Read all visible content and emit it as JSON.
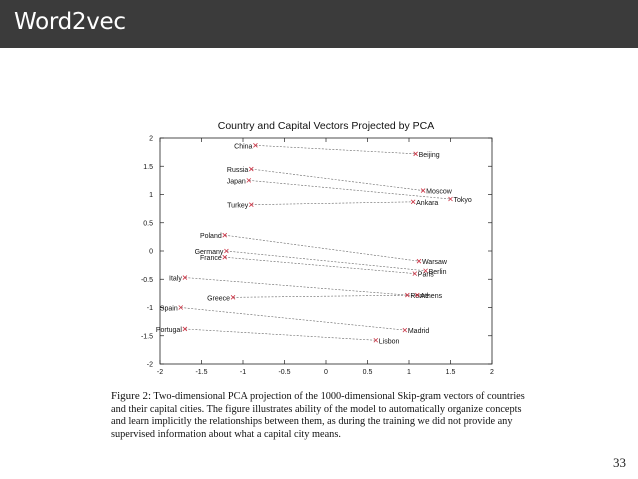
{
  "slide": {
    "title": "Word2vec",
    "page_number": "33"
  },
  "caption": {
    "label": "Figure 2:",
    "text": "Two-dimensional PCA projection of the 1000-dimensional Skip-gram vectors of countries and their capital cities. The figure illustrates ability of the model to automatically organize concepts and learn implicitly the relationships between them, as during the training we did not provide any supervised information about what a capital city means."
  },
  "colors": {
    "header_bg": "#3b3b3b",
    "marker": "#cc3344",
    "line": "#666666"
  },
  "chart_data": {
    "type": "scatter",
    "title": "Country and Capital Vectors Projected by PCA",
    "xlim": [
      -2,
      2
    ],
    "ylim": [
      -2,
      2
    ],
    "xticks": [
      "-2",
      "-1.5",
      "-1",
      "-0.5",
      "0",
      "0.5",
      "1",
      "1.5",
      "2"
    ],
    "yticks": [
      "2",
      "1.5",
      "1",
      "0.5",
      "0",
      "-0.5",
      "-1",
      "-1.5",
      "-2"
    ],
    "grid": false,
    "points": [
      {
        "label": "China",
        "x": -0.85,
        "y": 1.87
      },
      {
        "label": "Beijing",
        "x": 1.08,
        "y": 1.72
      },
      {
        "label": "Russia",
        "x": -0.9,
        "y": 1.45
      },
      {
        "label": "Moscow",
        "x": 1.17,
        "y": 1.07
      },
      {
        "label": "Japan",
        "x": -0.93,
        "y": 1.25
      },
      {
        "label": "Tokyo",
        "x": 1.5,
        "y": 0.92
      },
      {
        "label": "Turkey",
        "x": -0.9,
        "y": 0.82
      },
      {
        "label": "Ankara",
        "x": 1.05,
        "y": 0.87
      },
      {
        "label": "Poland",
        "x": -1.22,
        "y": 0.28
      },
      {
        "label": "Warsaw",
        "x": 1.12,
        "y": -0.18
      },
      {
        "label": "Germany",
        "x": -1.2,
        "y": 0.0
      },
      {
        "label": "Berlin",
        "x": 1.2,
        "y": -0.35
      },
      {
        "label": "France",
        "x": -1.22,
        "y": -0.11
      },
      {
        "label": "Paris",
        "x": 1.07,
        "y": -0.4
      },
      {
        "label": "Italy",
        "x": -1.7,
        "y": -0.47
      },
      {
        "label": "Rome",
        "x": 0.98,
        "y": -0.78
      },
      {
        "label": "Greece",
        "x": -1.12,
        "y": -0.82
      },
      {
        "label": "Athens",
        "x": 1.1,
        "y": -0.78
      },
      {
        "label": "Spain",
        "x": -1.75,
        "y": -1.0
      },
      {
        "label": "Madrid",
        "x": 0.95,
        "y": -1.4
      },
      {
        "label": "Portugal",
        "x": -1.7,
        "y": -1.38
      },
      {
        "label": "Lisbon",
        "x": 0.6,
        "y": -1.58
      }
    ],
    "pairs": [
      [
        "China",
        "Beijing"
      ],
      [
        "Russia",
        "Moscow"
      ],
      [
        "Japan",
        "Tokyo"
      ],
      [
        "Turkey",
        "Ankara"
      ],
      [
        "Poland",
        "Warsaw"
      ],
      [
        "Germany",
        "Berlin"
      ],
      [
        "France",
        "Paris"
      ],
      [
        "Italy",
        "Rome"
      ],
      [
        "Greece",
        "Athens"
      ],
      [
        "Spain",
        "Madrid"
      ],
      [
        "Portugal",
        "Lisbon"
      ]
    ]
  }
}
